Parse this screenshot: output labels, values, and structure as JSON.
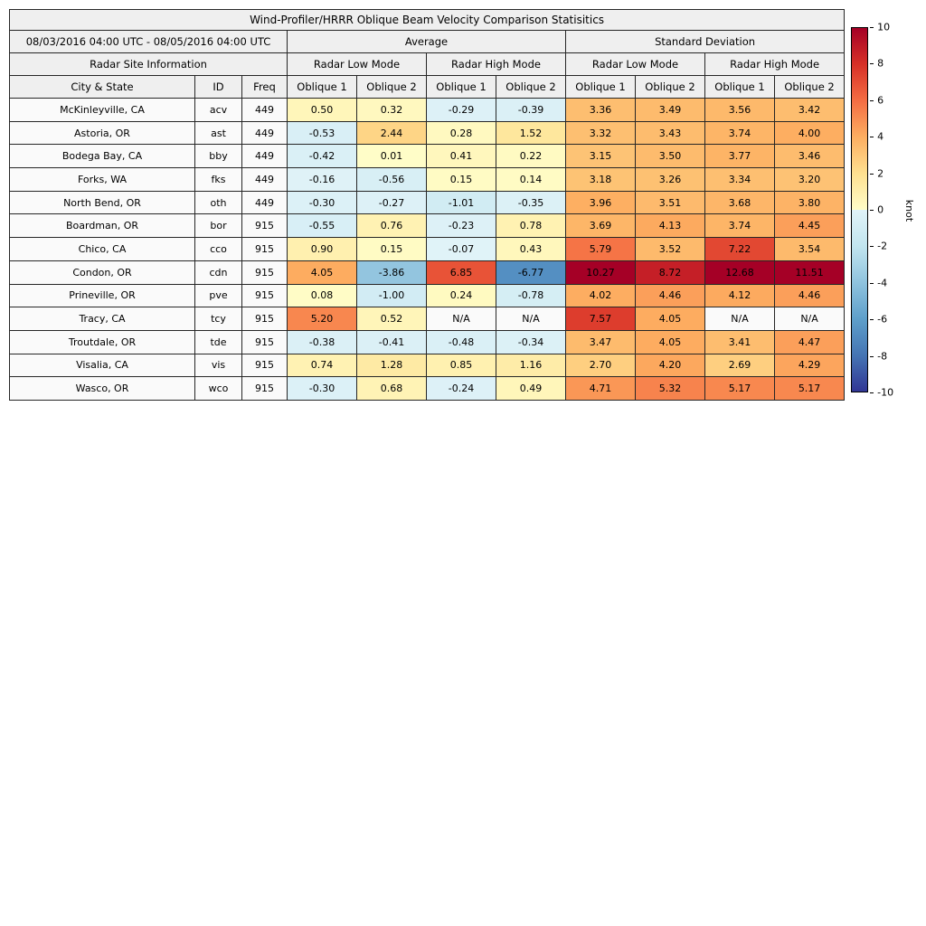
{
  "chart_data": {
    "type": "heatmap",
    "title": "Wind-Profiler/HRRR Oblique Beam Velocity Comparison Statisitics",
    "date_range": "08/03/2016 04:00 UTC - 08/05/2016 04:00 UTC",
    "groups": {
      "average": "Average",
      "std": "Standard Deviation",
      "site_info": "Radar Site Information",
      "low_mode": "Radar Low Mode",
      "high_mode": "Radar High Mode"
    },
    "columns": [
      "City & State",
      "ID",
      "Freq",
      "Oblique 1",
      "Oblique 2",
      "Oblique 1",
      "Oblique 2",
      "Oblique 1",
      "Oblique 2",
      "Oblique 1",
      "Oblique 2"
    ],
    "value_columns_meaning": [
      "Average Low Oblique 1",
      "Average Low Oblique 2",
      "Average High Oblique 1",
      "Average High Oblique 2",
      "StdDev Low Oblique 1",
      "StdDev Low Oblique 2",
      "StdDev High Oblique 1",
      "StdDev High Oblique 2"
    ],
    "rows": [
      {
        "city": "McKinleyville, CA",
        "id": "acv",
        "freq": "449",
        "values": [
          0.5,
          0.32,
          -0.29,
          -0.39,
          3.36,
          3.49,
          3.56,
          3.42
        ]
      },
      {
        "city": "Astoria, OR",
        "id": "ast",
        "freq": "449",
        "values": [
          -0.53,
          2.44,
          0.28,
          1.52,
          3.32,
          3.43,
          3.74,
          4.0
        ]
      },
      {
        "city": "Bodega Bay, CA",
        "id": "bby",
        "freq": "449",
        "values": [
          -0.42,
          0.01,
          0.41,
          0.22,
          3.15,
          3.5,
          3.77,
          3.46
        ]
      },
      {
        "city": "Forks, WA",
        "id": "fks",
        "freq": "449",
        "values": [
          -0.16,
          -0.56,
          0.15,
          0.14,
          3.18,
          3.26,
          3.34,
          3.2
        ]
      },
      {
        "city": "North Bend, OR",
        "id": "oth",
        "freq": "449",
        "values": [
          -0.3,
          -0.27,
          -1.01,
          -0.35,
          3.96,
          3.51,
          3.68,
          3.8
        ]
      },
      {
        "city": "Boardman, OR",
        "id": "bor",
        "freq": "915",
        "values": [
          -0.55,
          0.76,
          -0.23,
          0.78,
          3.69,
          4.13,
          3.74,
          4.45
        ]
      },
      {
        "city": "Chico, CA",
        "id": "cco",
        "freq": "915",
        "values": [
          0.9,
          0.15,
          -0.07,
          0.43,
          5.79,
          3.52,
          7.22,
          3.54
        ]
      },
      {
        "city": "Condon, OR",
        "id": "cdn",
        "freq": "915",
        "values": [
          4.05,
          -3.86,
          6.85,
          -6.77,
          10.27,
          8.72,
          12.68,
          11.51
        ]
      },
      {
        "city": "Prineville, OR",
        "id": "pve",
        "freq": "915",
        "values": [
          0.08,
          -1.0,
          0.24,
          -0.78,
          4.02,
          4.46,
          4.12,
          4.46
        ]
      },
      {
        "city": "Tracy, CA",
        "id": "tcy",
        "freq": "915",
        "values": [
          5.2,
          0.52,
          null,
          null,
          7.57,
          4.05,
          null,
          null
        ]
      },
      {
        "city": "Troutdale, OR",
        "id": "tde",
        "freq": "915",
        "values": [
          -0.38,
          -0.41,
          -0.48,
          -0.34,
          3.47,
          4.05,
          3.41,
          4.47
        ]
      },
      {
        "city": "Visalia, CA",
        "id": "vis",
        "freq": "915",
        "values": [
          0.74,
          1.28,
          0.85,
          1.16,
          2.7,
          4.2,
          2.69,
          4.29
        ]
      },
      {
        "city": "Wasco, OR",
        "id": "wco",
        "freq": "915",
        "values": [
          -0.3,
          0.68,
          -0.24,
          0.49,
          4.71,
          5.32,
          5.17,
          5.17
        ]
      }
    ],
    "na_text": "N/A",
    "colorbar": {
      "label": "knot",
      "min": -10,
      "max": 10,
      "ticks": [
        10,
        8,
        6,
        4,
        2,
        0,
        -2,
        -4,
        -6,
        -8,
        -10
      ],
      "na_color": "#FAFAFA",
      "positive_anchors": [
        [
          0,
          "#FFFDC8"
        ],
        [
          2,
          "#FEE090"
        ],
        [
          4,
          "#FDAE61"
        ],
        [
          6,
          "#F46D43"
        ],
        [
          8,
          "#D73027"
        ],
        [
          10,
          "#A50026"
        ]
      ],
      "negative_anchors": [
        [
          -10,
          "#313695"
        ],
        [
          -8,
          "#4575B4"
        ],
        [
          -6,
          "#5E9FCA"
        ],
        [
          -4,
          "#8FC3DE"
        ],
        [
          -2,
          "#C2E5EF"
        ],
        [
          0,
          "#E1F3F8"
        ]
      ]
    }
  }
}
